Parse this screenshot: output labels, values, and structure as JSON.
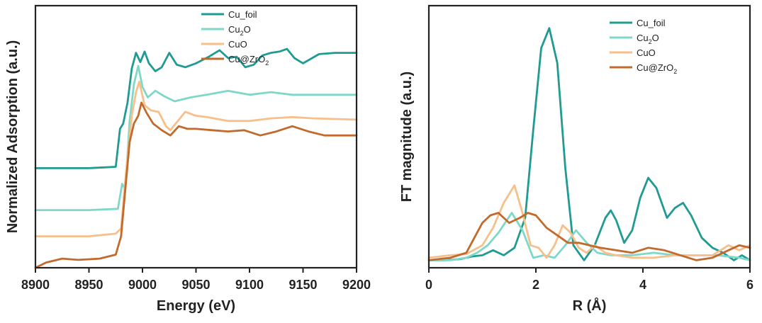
{
  "chart_data": [
    {
      "type": "line",
      "name": "xanes",
      "xlabel": "Energy (eV)",
      "ylabel": "Normalized Adsorption (a.u.)",
      "xlim": [
        8900,
        9200
      ],
      "ylim": [
        0,
        10
      ],
      "xticks": [
        8900,
        8950,
        9000,
        9050,
        9100,
        9150,
        9200
      ],
      "yticks_shown": false,
      "legend_position": "top-right",
      "series": [
        {
          "name": "Cu_foil",
          "legend": [
            "Cu_foil",
            ""
          ],
          "color": "#1f9b92",
          "x": [
            8900,
            8950,
            8975,
            8979,
            8982,
            8986,
            8990,
            8994,
            8998,
            9002,
            9006,
            9012,
            9018,
            9025,
            9032,
            9040,
            9050,
            9062,
            9072,
            9080,
            9088,
            9096,
            9104,
            9112,
            9120,
            9128,
            9135,
            9142,
            9150,
            9165,
            9180,
            9200
          ],
          "y": [
            3.8,
            3.8,
            3.85,
            5.3,
            5.5,
            6.3,
            7.6,
            8.2,
            7.85,
            8.25,
            7.8,
            7.5,
            7.65,
            8.2,
            7.75,
            7.65,
            7.8,
            8.05,
            8.3,
            8.0,
            8.05,
            7.65,
            7.75,
            8.1,
            8.2,
            8.25,
            8.35,
            8.0,
            7.8,
            8.15,
            8.2,
            8.2
          ]
        },
        {
          "name": "Cu2O",
          "legend": [
            "Cu",
            "2",
            "O"
          ],
          "color": "#7ed8c8",
          "x": [
            8900,
            8950,
            8977,
            8981,
            8984,
            8988,
            8992,
            8996,
            9000,
            9005,
            9012,
            9020,
            9030,
            9045,
            9060,
            9080,
            9100,
            9120,
            9140,
            9160,
            9200
          ],
          "y": [
            2.2,
            2.2,
            2.25,
            3.2,
            3.0,
            5.6,
            7.0,
            7.7,
            6.9,
            6.5,
            6.75,
            6.55,
            6.35,
            6.5,
            6.6,
            6.75,
            6.6,
            6.7,
            6.6,
            6.6,
            6.6
          ]
        },
        {
          "name": "CuO",
          "legend": [
            "CuO",
            ""
          ],
          "color": "#f7bf8a",
          "x": [
            8900,
            8950,
            8975,
            8980,
            8985,
            8990,
            8994,
            8997,
            9002,
            9008,
            9015,
            9022,
            9026,
            9032,
            9040,
            9050,
            9060,
            9080,
            9100,
            9120,
            9140,
            9160,
            9200
          ],
          "y": [
            1.2,
            1.2,
            1.3,
            1.5,
            3.8,
            5.8,
            6.7,
            7.1,
            6.2,
            6.0,
            5.95,
            5.4,
            5.25,
            5.55,
            5.95,
            5.8,
            5.75,
            5.6,
            5.6,
            5.7,
            5.75,
            5.7,
            5.65
          ]
        },
        {
          "name": "Cu@ZrO2",
          "legend": [
            "Cu@ZrO",
            "2",
            ""
          ],
          "color": "#c26a2c",
          "x": [
            8900,
            8910,
            8925,
            8940,
            8960,
            8975,
            8980,
            8984,
            8988,
            8992,
            8996,
            8999,
            9004,
            9010,
            9018,
            9026,
            9034,
            9042,
            9050,
            9065,
            9080,
            9095,
            9110,
            9125,
            9140,
            9155,
            9170,
            9200
          ],
          "y": [
            0.0,
            0.2,
            0.35,
            0.3,
            0.35,
            0.5,
            1.2,
            3.0,
            4.8,
            5.5,
            5.8,
            6.3,
            5.9,
            5.5,
            5.25,
            5.05,
            5.4,
            5.3,
            5.3,
            5.25,
            5.2,
            5.25,
            5.05,
            5.2,
            5.4,
            5.2,
            5.05,
            5.05
          ]
        }
      ]
    },
    {
      "type": "line",
      "name": "exafs",
      "xlabel": "R (Å)",
      "ylabel": "FT magnitude (a.u.)",
      "xlim": [
        0,
        6
      ],
      "ylim": [
        0,
        10.5
      ],
      "xticks": [
        0,
        2,
        4,
        6
      ],
      "yticks_shown": false,
      "legend_position": "top-right",
      "series": [
        {
          "name": "Cu_foil",
          "legend": [
            "Cu_foil",
            ""
          ],
          "color": "#1f9b92",
          "x": [
            0.0,
            0.3,
            0.6,
            0.8,
            1.0,
            1.2,
            1.4,
            1.6,
            1.8,
            1.95,
            2.1,
            2.25,
            2.4,
            2.55,
            2.7,
            2.9,
            3.1,
            3.3,
            3.4,
            3.5,
            3.65,
            3.8,
            3.95,
            4.1,
            4.25,
            4.45,
            4.6,
            4.75,
            4.9,
            5.1,
            5.3,
            5.5,
            5.7,
            5.85,
            6.0
          ],
          "y": [
            0.3,
            0.3,
            0.35,
            0.45,
            0.5,
            0.7,
            0.5,
            0.8,
            2.0,
            5.5,
            8.8,
            9.6,
            8.2,
            4.0,
            0.9,
            0.3,
            0.9,
            2.0,
            2.3,
            1.9,
            1.0,
            1.5,
            2.8,
            3.6,
            3.2,
            2.0,
            2.4,
            2.6,
            2.1,
            1.2,
            0.8,
            0.6,
            0.3,
            0.5,
            0.3
          ]
        },
        {
          "name": "Cu2O",
          "legend": [
            "Cu",
            "2",
            "O"
          ],
          "color": "#7ed8c8",
          "x": [
            0.0,
            0.4,
            0.7,
            0.9,
            1.1,
            1.3,
            1.55,
            1.75,
            1.95,
            2.15,
            2.35,
            2.55,
            2.75,
            2.95,
            3.15,
            3.4,
            3.8,
            4.2,
            4.6,
            5.0,
            5.4,
            5.8,
            6.0
          ],
          "y": [
            0.3,
            0.3,
            0.4,
            0.6,
            0.9,
            1.4,
            2.2,
            1.5,
            0.4,
            0.5,
            0.4,
            0.9,
            1.5,
            1.0,
            0.6,
            0.5,
            0.5,
            0.6,
            0.5,
            0.5,
            0.5,
            0.4,
            0.3
          ]
        },
        {
          "name": "CuO",
          "legend": [
            "CuO",
            ""
          ],
          "color": "#f7bf8a",
          "x": [
            0.0,
            0.4,
            0.7,
            1.0,
            1.2,
            1.4,
            1.6,
            1.75,
            1.9,
            2.05,
            2.2,
            2.35,
            2.5,
            2.65,
            2.8,
            2.95,
            3.1,
            3.3,
            3.5,
            3.8,
            4.2,
            4.6,
            5.0,
            5.3,
            5.6,
            5.8,
            6.0
          ],
          "y": [
            0.4,
            0.5,
            0.55,
            0.9,
            1.6,
            2.6,
            3.3,
            2.2,
            0.9,
            0.8,
            0.4,
            0.9,
            1.7,
            1.4,
            0.8,
            0.6,
            0.9,
            0.6,
            0.5,
            0.4,
            0.4,
            0.5,
            0.5,
            0.5,
            0.9,
            0.7,
            0.9
          ]
        },
        {
          "name": "Cu@ZrO2",
          "legend": [
            "Cu@ZrO",
            "2",
            ""
          ],
          "color": "#c26a2c",
          "x": [
            0.0,
            0.4,
            0.7,
            0.85,
            1.0,
            1.15,
            1.3,
            1.5,
            1.7,
            1.85,
            2.0,
            2.2,
            2.4,
            2.6,
            2.8,
            3.0,
            3.2,
            3.5,
            3.8,
            4.1,
            4.4,
            4.7,
            5.0,
            5.3,
            5.6,
            5.8,
            6.0
          ],
          "y": [
            0.3,
            0.4,
            0.6,
            1.2,
            1.8,
            2.1,
            2.2,
            1.8,
            2.0,
            2.2,
            2.1,
            1.6,
            1.3,
            1.0,
            1.0,
            0.9,
            0.8,
            0.7,
            0.6,
            0.8,
            0.7,
            0.5,
            0.3,
            0.4,
            0.7,
            0.9,
            0.8
          ]
        }
      ]
    }
  ]
}
